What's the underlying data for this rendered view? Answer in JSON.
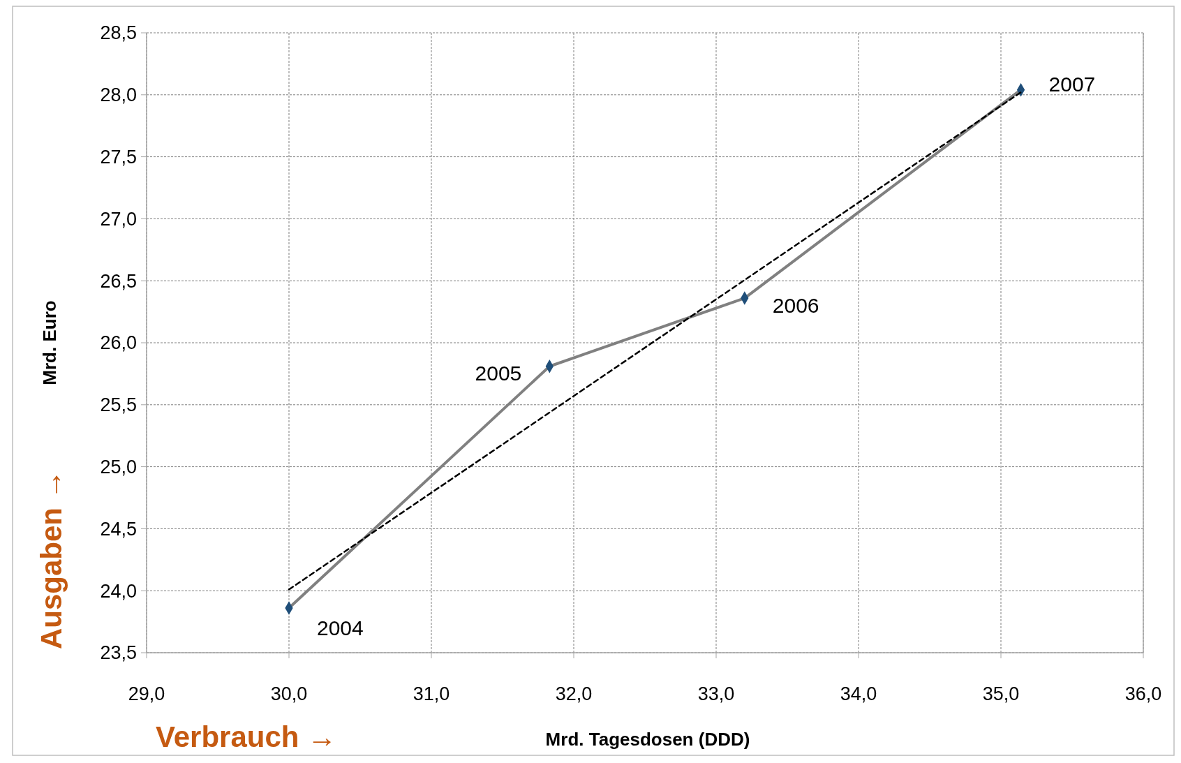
{
  "chart_data": {
    "type": "line",
    "xlabel": "Mrd. Tagesdosen (DDD)",
    "ylabel": "Mrd. Euro",
    "xlim": [
      29,
      36
    ],
    "ylim": [
      23.5,
      28.5
    ],
    "xticks": [
      {
        "value": 29,
        "label": "29,0"
      },
      {
        "value": 30,
        "label": "30,0"
      },
      {
        "value": 31,
        "label": "31,0"
      },
      {
        "value": 32,
        "label": "32,0"
      },
      {
        "value": 33,
        "label": "33,0"
      },
      {
        "value": 34,
        "label": "34,0"
      },
      {
        "value": 35,
        "label": "35,0"
      },
      {
        "value": 36,
        "label": "36,0"
      }
    ],
    "yticks": [
      {
        "value": 23.5,
        "label": "23,5"
      },
      {
        "value": 24,
        "label": "24,0"
      },
      {
        "value": 24.5,
        "label": "24,5"
      },
      {
        "value": 25,
        "label": "25,0"
      },
      {
        "value": 25.5,
        "label": "25,5"
      },
      {
        "value": 26,
        "label": "26,0"
      },
      {
        "value": 26.5,
        "label": "26,5"
      },
      {
        "value": 27,
        "label": "27,0"
      },
      {
        "value": 27.5,
        "label": "27,5"
      },
      {
        "value": 28,
        "label": "28,0"
      },
      {
        "value": 28.5,
        "label": "28,5"
      }
    ],
    "grid": true,
    "series": [
      {
        "color": "#808080",
        "x": [
          30.0,
          31.83,
          33.2,
          35.14
        ],
        "values": [
          23.86,
          25.81,
          26.36,
          28.04
        ],
        "marker": "diamond",
        "line_style": "solid"
      },
      {
        "color": "#000000",
        "x": [
          30.0,
          35.14
        ],
        "values": [
          24.01,
          28.02
        ],
        "marker": "none",
        "line_style": "dashed"
      }
    ],
    "annotations": [
      {
        "text": "2004",
        "x": 30.0,
        "y": 23.86
      },
      {
        "text": "2005",
        "x": 31.83,
        "y": 25.81
      },
      {
        "text": "2006",
        "x": 33.2,
        "y": 26.36
      },
      {
        "text": "2007",
        "x": 35.14,
        "y": 28.04
      },
      "Ausgaben →",
      "Verbrauch →"
    ]
  }
}
